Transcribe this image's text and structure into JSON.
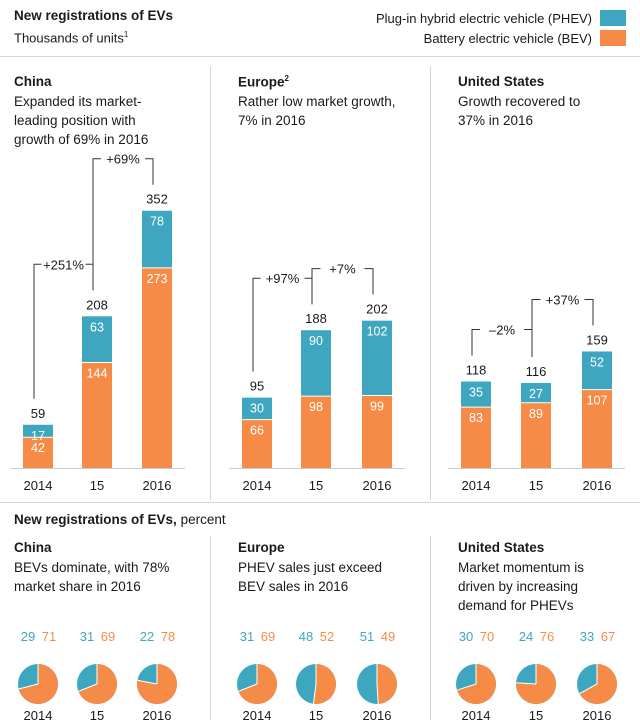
{
  "header": {
    "title": "New registrations of EVs",
    "subtitle": "Thousands of units",
    "subtitle_footnote": "1"
  },
  "legend": [
    {
      "label": "Plug-in hybrid electric vehicle (PHEV)",
      "color": "#3ea7bf"
    },
    {
      "label": "Battery electric vehicle (BEV)",
      "color": "#f68b47"
    }
  ],
  "colors": {
    "phev": "#3ea7bf",
    "bev": "#f68b47",
    "axis": "#cccccc",
    "bracket": "#333333"
  },
  "regions": [
    {
      "name": "China",
      "footnote": "",
      "desc": [
        "Expanded its market-",
        "leading position with",
        "growth of 69% in 2016"
      ]
    },
    {
      "name": "Europe",
      "footnote": "2",
      "desc": [
        "Rather low market growth,",
        "7% in 2016"
      ]
    },
    {
      "name": "United States",
      "footnote": "",
      "desc": [
        "Growth recovered to",
        "37% in 2016"
      ]
    }
  ],
  "section2": {
    "title": "New registrations of EVs,",
    "suffix": "percent"
  },
  "regions2": [
    {
      "name": "China",
      "desc": [
        "BEVs dominate, with 78%",
        "market share in 2016"
      ]
    },
    {
      "name": "Europe",
      "desc": [
        "PHEV sales just exceed",
        "BEV sales in 2016"
      ]
    },
    {
      "name": "United States",
      "desc": [
        "Market momentum is",
        "driven by increasing",
        "demand for PHEVs"
      ]
    }
  ],
  "chart_data": [
    {
      "type": "bar",
      "title": "New registrations of EVs",
      "subtitle": "Thousands of units",
      "stacked": true,
      "categories": [
        "2014",
        "15",
        "2016"
      ],
      "series_order": [
        "BEV",
        "PHEV"
      ],
      "panels": [
        {
          "name": "China",
          "totals": [
            59,
            208,
            352
          ],
          "bev": [
            42,
            144,
            273
          ],
          "phev": [
            17,
            63,
            78
          ],
          "growth": [
            {
              "label": "+251%",
              "from": 0,
              "to": 1
            },
            {
              "label": "+69%",
              "from": 1,
              "to": 2
            }
          ]
        },
        {
          "name": "Europe",
          "totals": [
            95,
            188,
            202
          ],
          "bev": [
            66,
            98,
            99
          ],
          "phev": [
            30,
            90,
            102
          ],
          "growth": [
            {
              "label": "+97%",
              "from": 0,
              "to": 1
            },
            {
              "label": "+7%",
              "from": 1,
              "to": 2
            }
          ]
        },
        {
          "name": "United States",
          "totals": [
            118,
            116,
            159
          ],
          "bev": [
            83,
            89,
            107
          ],
          "phev": [
            35,
            27,
            52
          ],
          "growth": [
            {
              "label": "–2%",
              "from": 0,
              "to": 1
            },
            {
              "label": "+37%",
              "from": 1,
              "to": 2
            }
          ]
        }
      ],
      "ylim": [
        0,
        360
      ]
    },
    {
      "type": "pie",
      "title": "New registrations of EVs, percent",
      "categories": [
        "2014",
        "15",
        "2016"
      ],
      "panels": [
        {
          "name": "China",
          "phev": [
            29,
            31,
            22
          ],
          "bev": [
            71,
            69,
            78
          ]
        },
        {
          "name": "Europe",
          "phev": [
            31,
            48,
            51
          ],
          "bev": [
            69,
            52,
            49
          ]
        },
        {
          "name": "United States",
          "phev": [
            30,
            24,
            33
          ],
          "bev": [
            70,
            76,
            67
          ]
        }
      ]
    }
  ]
}
